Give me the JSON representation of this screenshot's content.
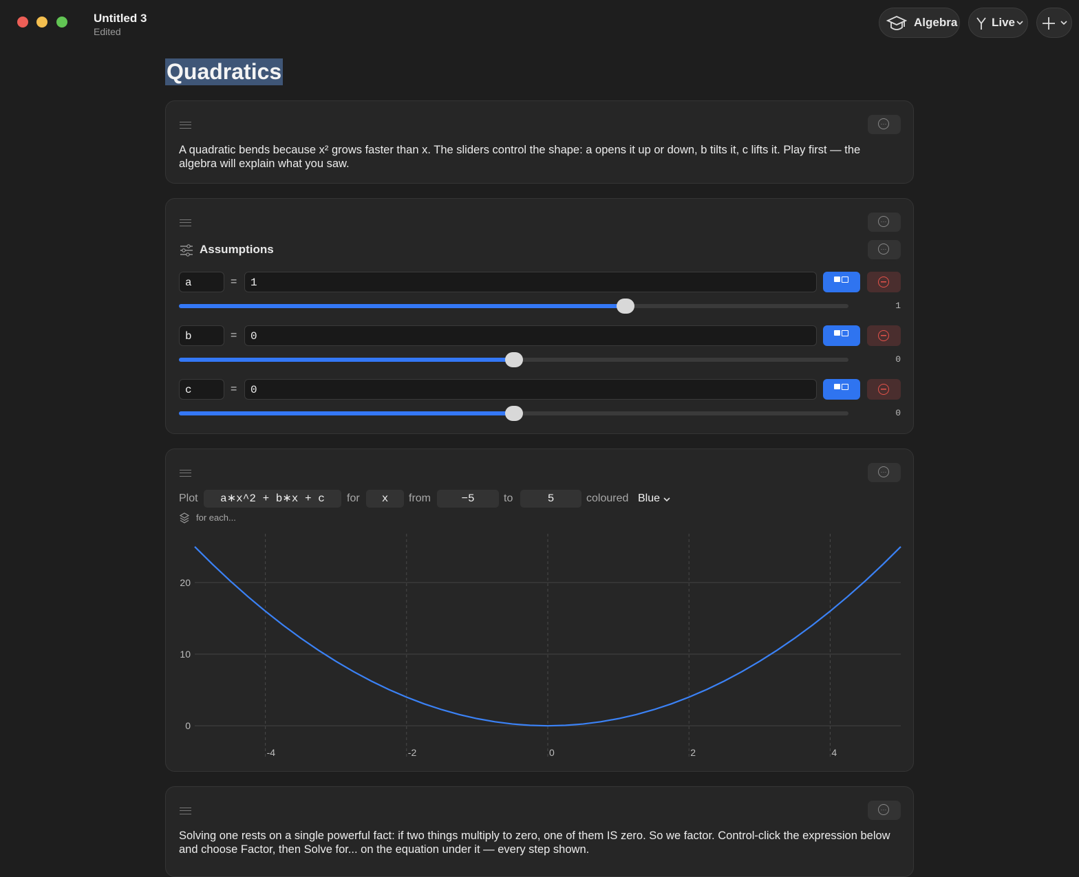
{
  "window": {
    "title": "Untitled 3",
    "status": "Edited"
  },
  "toolbar": {
    "subject": "Algebra",
    "mode": "Live"
  },
  "document": {
    "title": "Quadratics",
    "intro_text": "A quadratic bends because x² grows faster than x. The sliders control the shape: a opens it up or down, b tilts it, c lifts it. Play first — the algebra will explain what you saw.",
    "assumptions": {
      "heading": "Assumptions",
      "rows": [
        {
          "name": "a",
          "value": 1,
          "slider_range": [
            -3,
            3
          ]
        },
        {
          "name": "b",
          "value": 0,
          "slider_range": [
            -3,
            3
          ]
        },
        {
          "name": "c",
          "value": 0,
          "slider_range": [
            -3,
            3
          ]
        }
      ]
    },
    "plot": {
      "label_plot": "Plot",
      "expression": "a∗x^2 + b∗x + c",
      "label_for": "for",
      "variable": "x",
      "label_from": "from",
      "from": "−5",
      "label_to": "to",
      "to": "5",
      "label_coloured": "coloured",
      "colour": "Blue",
      "for_each": "for each..."
    },
    "closing_text": "Solving one rests on a single powerful fact: if two things multiply to zero, one of them IS zero. So we factor. Control-click the expression below and choose Factor, then Solve for... on the equation under it — every step shown."
  },
  "chart_data": {
    "type": "line",
    "x": [
      -5,
      -4.75,
      -4.5,
      -4.25,
      -4,
      -3.75,
      -3.5,
      -3.25,
      -3,
      -2.75,
      -2.5,
      -2.25,
      -2,
      -1.75,
      -1.5,
      -1.25,
      -1,
      -0.75,
      -0.5,
      -0.25,
      0,
      0.25,
      0.5,
      0.75,
      1,
      1.25,
      1.5,
      1.75,
      2,
      2.25,
      2.5,
      2.75,
      3,
      3.25,
      3.5,
      3.75,
      4,
      4.25,
      4.5,
      4.75,
      5
    ],
    "values": [
      25,
      22.5625,
      20.25,
      18.0625,
      16,
      14.0625,
      12.25,
      10.5625,
      9,
      7.5625,
      6.25,
      5.0625,
      4,
      3.0625,
      2.25,
      1.5625,
      1,
      0.5625,
      0.25,
      0.0625,
      0,
      0.0625,
      0.25,
      0.5625,
      1,
      1.5625,
      2.25,
      3.0625,
      4,
      5.0625,
      6.25,
      7.5625,
      9,
      10.5625,
      12.25,
      14.0625,
      16,
      18.0625,
      20.25,
      22.5625,
      25
    ],
    "color": "#3b82f6",
    "xlim": [
      -5,
      5
    ],
    "ylim": [
      -2,
      27
    ],
    "xticks": [
      -4,
      -2,
      0,
      2,
      4
    ],
    "yticks": [
      0,
      10,
      20
    ],
    "grid": true
  }
}
